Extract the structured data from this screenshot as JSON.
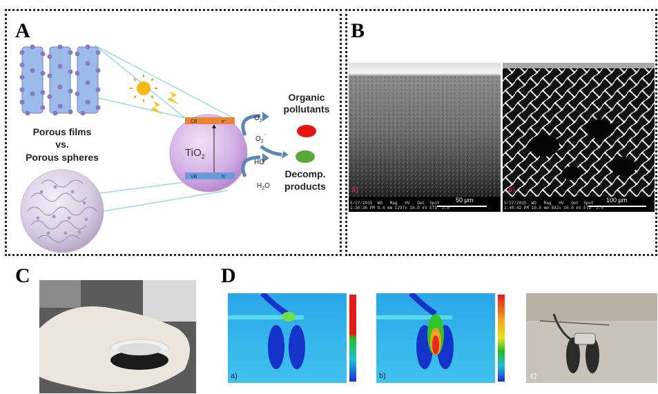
{
  "panels": {
    "a": "A",
    "b": "B",
    "c": "C",
    "d": "D"
  },
  "panel_a": {
    "left_caption_line1": "Porous films",
    "left_caption_line2": "vs.",
    "left_caption_line3": "Porous spheres",
    "tio2_label": "TiO",
    "tio2_sub": "2",
    "cb_label": "CB",
    "vb_label": "VB",
    "electron": "e⁻",
    "hole": "h⁺",
    "o2": "O",
    "o2_sub": "2",
    "o2_radical": "O",
    "o2_radical_sub": "2",
    "o2_radical_sup": "⁻",
    "ho_radical": "HO",
    "ho_sup": "·",
    "h2o": "H",
    "h2o_sub": "2",
    "h2o_end": "O",
    "organic_line1": "Organic",
    "organic_line2": "pollutants",
    "decomp_line1": "Decomp.",
    "decomp_line2": "products",
    "colors": {
      "sphere": "#d7b3e8",
      "rod": "#9bbbe8",
      "dot": "#8a78c6",
      "cb_band": "#e8863a",
      "vb_band": "#6a9ad8",
      "pollutant": "#e81414",
      "product": "#5aa838",
      "ray": "#9ad8e6"
    }
  },
  "panel_b": {
    "left_tag": "a)",
    "right_tag": "b)",
    "left_scale": "50 µm",
    "right_scale": "100 µm",
    "left_meta": "5/27/2015  WD   Mag   HV   Det  Spot\n1:30:36 PM 9.4 mm 1297x 10.0 kV ETD  2.0",
    "right_meta": "5/27/2015  WD   Mag   HV   Det  Spot\n1:48:42 PM 10.8 mm 582x 10.0 kV ETD  2.0"
  },
  "panel_d": {
    "tag_a": "a)",
    "tag_b": "b)",
    "tag_c": "c)"
  }
}
